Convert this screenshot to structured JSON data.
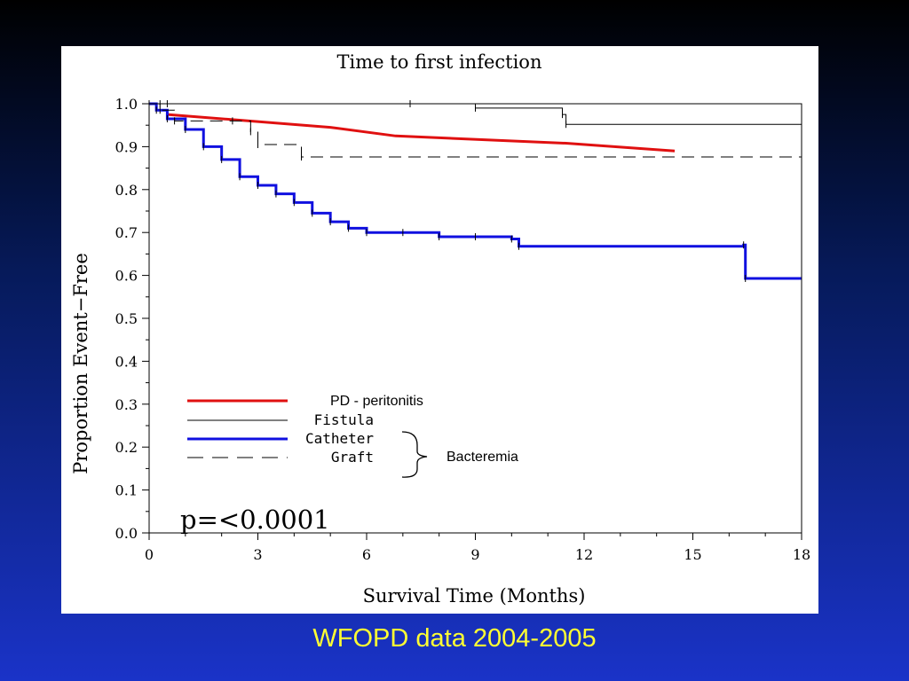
{
  "footer": {
    "caption": "WFOPD data 2004-2005"
  },
  "colors": {
    "background_top": "#000000",
    "background_bottom": "#1a33c8",
    "caption": "#ffff33",
    "pd_peritonitis": "#e01010",
    "catheter": "#1010e0",
    "fistula": "#000000",
    "graft": "#000000"
  },
  "annotations": {
    "p_value": "p=<0.0001",
    "bracket_label": "Bacteremia"
  },
  "chart_data": {
    "type": "line",
    "title": "Time to first infection",
    "xlabel": "Survival Time (Months)",
    "ylabel": "Proportion Event−Free",
    "xlim": [
      0,
      18
    ],
    "ylim": [
      0,
      1
    ],
    "x_ticks": [
      "0",
      "3",
      "6",
      "9",
      "12",
      "15",
      "18"
    ],
    "y_ticks": [
      "0.0",
      "0.1",
      "0.2",
      "0.3",
      "0.4",
      "0.5",
      "0.6",
      "0.7",
      "0.8",
      "0.9",
      "1.0"
    ],
    "legend_position": "lower-left",
    "series": [
      {
        "name": "PD - peritonitis",
        "style": "solid-thick",
        "color": "#e01010",
        "x": [
          0.5,
          5,
          6.8,
          11.5,
          14.5
        ],
        "y": [
          0.975,
          0.945,
          0.925,
          0.908,
          0.89
        ]
      },
      {
        "name": "Fistula",
        "style": "step",
        "color": "#000000",
        "x": [
          0,
          0.3,
          0.5,
          7.2,
          9,
          11.4,
          11.5,
          18
        ],
        "y": [
          1.0,
          1.0,
          1.0,
          1.0,
          0.99,
          0.975,
          0.952,
          0.952
        ]
      },
      {
        "name": "Catheter",
        "style": "step-thick",
        "color": "#1010e0",
        "x": [
          0,
          0.2,
          0.5,
          1,
          1.5,
          2,
          2.5,
          3,
          3.5,
          4,
          4.5,
          5,
          5.5,
          6,
          7,
          8,
          9,
          10,
          10.2,
          16.4,
          16.45,
          18
        ],
        "y": [
          1.0,
          0.985,
          0.965,
          0.94,
          0.9,
          0.87,
          0.83,
          0.81,
          0.79,
          0.77,
          0.745,
          0.725,
          0.71,
          0.7,
          0.7,
          0.69,
          0.69,
          0.685,
          0.668,
          0.671,
          0.593,
          0.593
        ]
      },
      {
        "name": "Graft",
        "style": "dashed-step",
        "color": "#000000",
        "x": [
          0,
          0.3,
          0.7,
          2.3,
          2.8,
          3.0,
          4.2,
          18
        ],
        "y": [
          1.0,
          0.985,
          0.96,
          0.96,
          0.935,
          0.905,
          0.876,
          0.876
        ]
      }
    ]
  }
}
